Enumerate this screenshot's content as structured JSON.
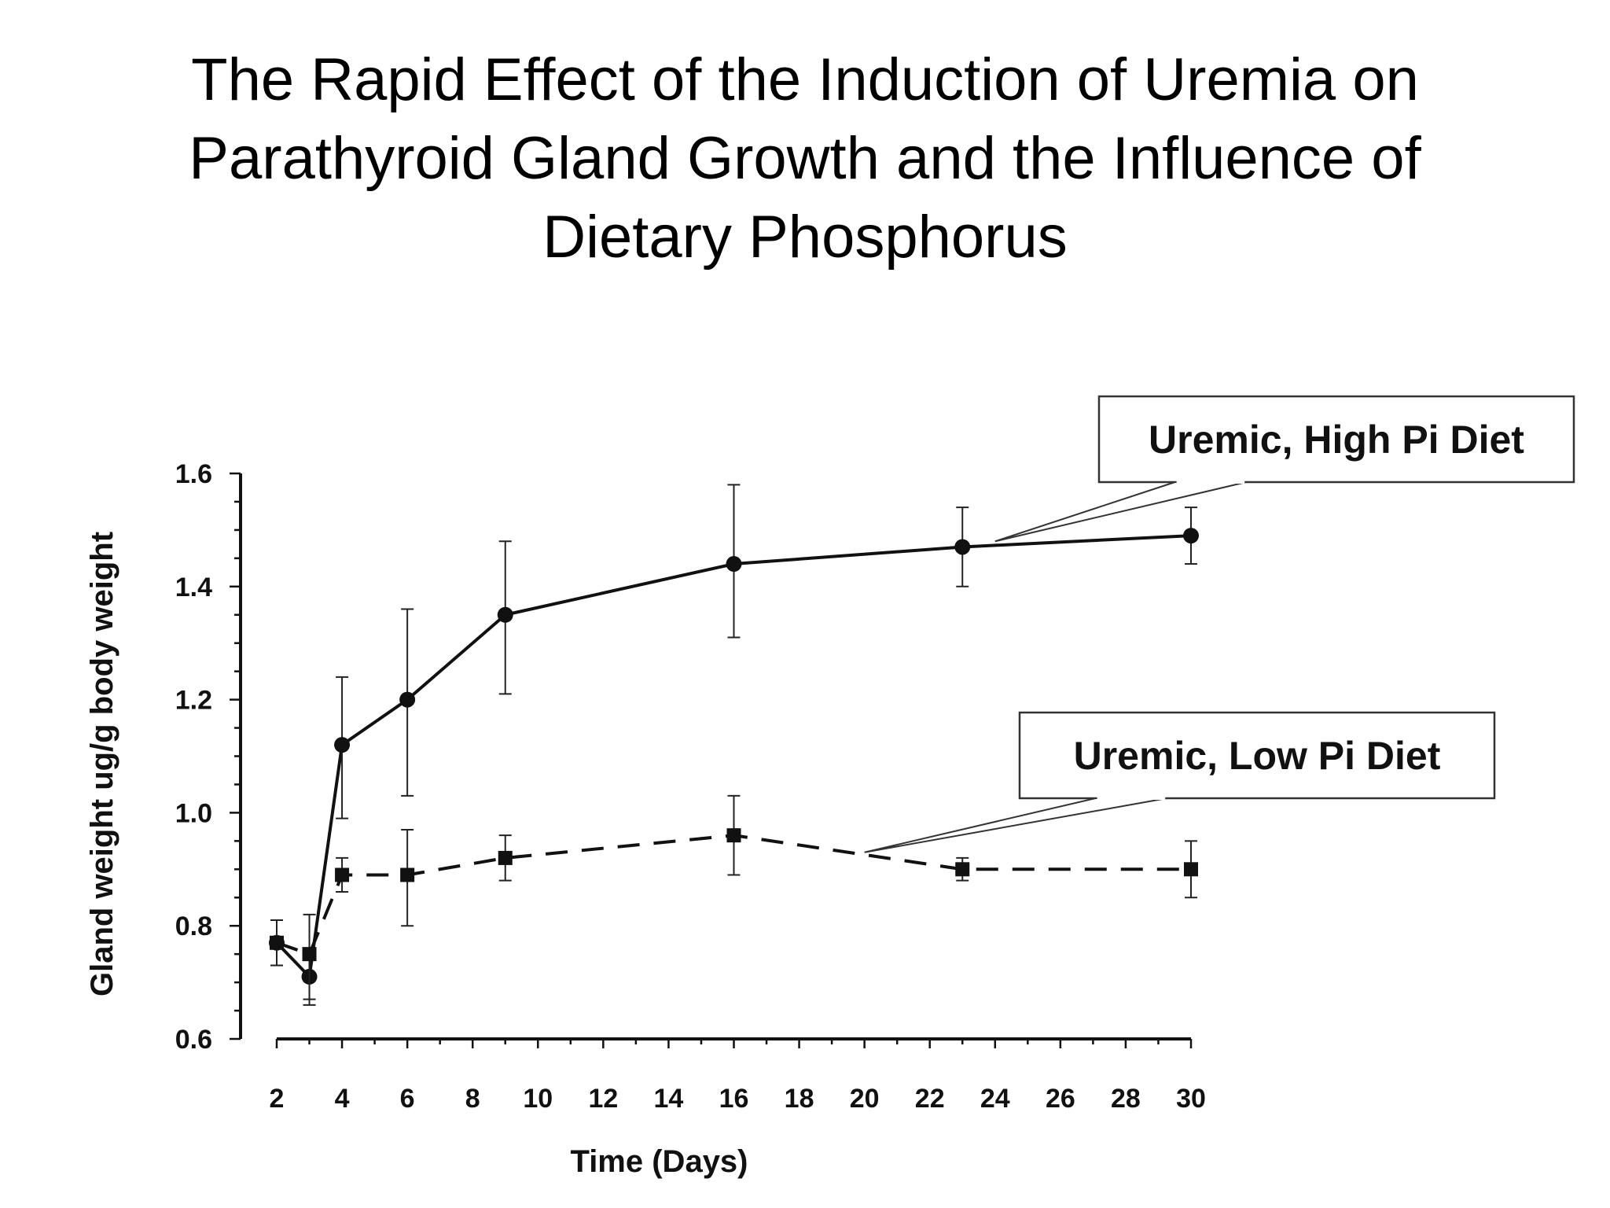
{
  "slide": {
    "title_lines": [
      "The Rapid Effect of the Induction of Uremia on",
      "Parathyroid Gland Growth and the Influence of",
      "Dietary Phosphorus"
    ]
  },
  "chart_data": {
    "type": "line",
    "title": "",
    "xlabel": "Time (Days)",
    "ylabel": "Gland weight ug/g body weight",
    "xlim": [
      2,
      30
    ],
    "ylim": [
      0.6,
      1.6
    ],
    "x_ticks": [
      2,
      4,
      6,
      8,
      10,
      12,
      14,
      16,
      18,
      20,
      22,
      24,
      26,
      28,
      30
    ],
    "y_ticks": [
      "0.6",
      "0.8",
      "1.0",
      "1.2",
      "1.4",
      "1.6"
    ],
    "grid": false,
    "legend": "callout boxes",
    "series": [
      {
        "name": "Uremic, High Pi Diet",
        "line_style": "solid",
        "marker": "circle",
        "color": "#111111",
        "points": [
          {
            "x": 2,
            "y": 0.77,
            "err_low": 0.73,
            "err_high": 0.81
          },
          {
            "x": 3,
            "y": 0.71,
            "err_low": 0.66,
            "err_high": 0.76
          },
          {
            "x": 4,
            "y": 1.12,
            "err_low": 0.99,
            "err_high": 1.24
          },
          {
            "x": 6,
            "y": 1.2,
            "err_low": 1.03,
            "err_high": 1.36
          },
          {
            "x": 9,
            "y": 1.35,
            "err_low": 1.21,
            "err_high": 1.48
          },
          {
            "x": 16,
            "y": 1.44,
            "err_low": 1.31,
            "err_high": 1.58
          },
          {
            "x": 23,
            "y": 1.47,
            "err_low": 1.4,
            "err_high": 1.54
          },
          {
            "x": 30,
            "y": 1.49,
            "err_low": 1.44,
            "err_high": 1.54
          }
        ]
      },
      {
        "name": "Uremic, Low Pi Diet",
        "line_style": "dashed",
        "marker": "square",
        "color": "#111111",
        "points": [
          {
            "x": 2,
            "y": 0.77,
            "err_low": 0.73,
            "err_high": 0.81
          },
          {
            "x": 3,
            "y": 0.75,
            "err_low": 0.67,
            "err_high": 0.82
          },
          {
            "x": 4,
            "y": 0.89,
            "err_low": 0.86,
            "err_high": 0.92
          },
          {
            "x": 6,
            "y": 0.89,
            "err_low": 0.8,
            "err_high": 0.97
          },
          {
            "x": 9,
            "y": 0.92,
            "err_low": 0.88,
            "err_high": 0.96
          },
          {
            "x": 16,
            "y": 0.96,
            "err_low": 0.89,
            "err_high": 1.03
          },
          {
            "x": 23,
            "y": 0.9,
            "err_low": 0.88,
            "err_high": 0.92
          },
          {
            "x": 30,
            "y": 0.9,
            "err_low": 0.85,
            "err_high": 0.95
          }
        ]
      }
    ],
    "annotations": [
      {
        "text": "Uremic, High Pi Diet",
        "series": 0,
        "points_to": {
          "x": 24,
          "y": 1.48
        }
      },
      {
        "text": "Uremic, Low Pi Diet",
        "series": 1,
        "points_to": {
          "x": 20,
          "y": 0.93
        }
      }
    ]
  }
}
